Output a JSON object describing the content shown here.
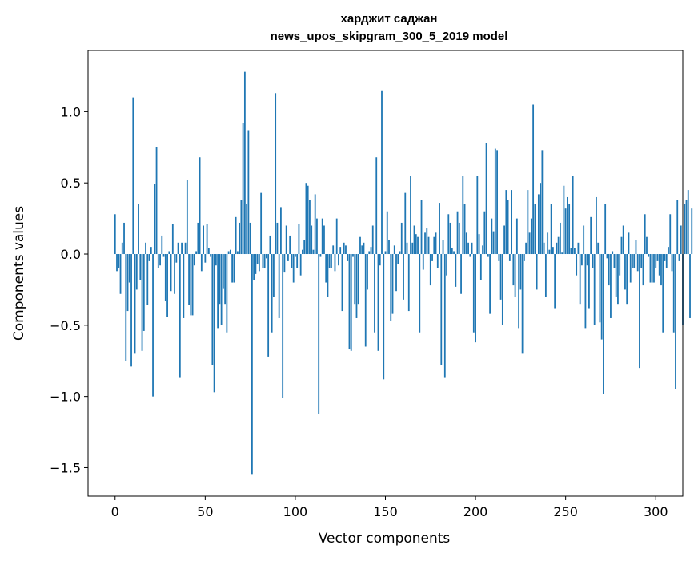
{
  "chart_data": {
    "type": "bar",
    "title": "харджит саджан",
    "subtitle": "news_upos_skipgram_300_5_2019 model",
    "xlabel": "Vector components",
    "ylabel": "Components values",
    "xlim": [
      -15,
      315
    ],
    "ylim": [
      -1.7,
      1.43
    ],
    "xticks": [
      0,
      50,
      100,
      150,
      200,
      250,
      300
    ],
    "yticks": [
      -1.5,
      -1.0,
      -0.5,
      0.0,
      0.5,
      1.0
    ],
    "ytick_labels": [
      "−1.5",
      "−1.0",
      "−0.5",
      "0.0",
      "0.5",
      "1.0"
    ],
    "xtick_labels": [
      "0",
      "50",
      "100",
      "150",
      "200",
      "250",
      "300"
    ],
    "bar_color": "#1f77b4",
    "grid": false,
    "legend": "none",
    "x_start": 0,
    "values": [
      0.28,
      -0.12,
      -0.1,
      -0.28,
      0.08,
      0.22,
      -0.75,
      -0.4,
      -0.2,
      -0.79,
      1.1,
      -0.7,
      -0.25,
      0.35,
      -0.18,
      -0.68,
      -0.54,
      0.08,
      -0.36,
      -0.05,
      0.05,
      -1.0,
      0.49,
      0.75,
      -0.1,
      -0.08,
      0.13,
      -0.02,
      -0.33,
      -0.44,
      0.02,
      -0.26,
      0.21,
      -0.28,
      -0.06,
      0.08,
      -0.87,
      0.08,
      -0.45,
      0.08,
      0.52,
      -0.36,
      -0.43,
      -0.43,
      -0.08,
      0.02,
      0.22,
      0.68,
      -0.12,
      0.2,
      -0.06,
      0.21,
      0.04,
      -0.02,
      -0.78,
      -0.97,
      -0.08,
      -0.52,
      -0.35,
      -0.5,
      -0.24,
      -0.35,
      -0.55,
      0.02,
      0.03,
      -0.2,
      -0.2,
      0.26,
      0.02,
      0.22,
      0.38,
      0.92,
      1.28,
      0.35,
      0.87,
      0.22,
      -1.55,
      -0.18,
      -0.14,
      -0.07,
      -0.12,
      0.43,
      -0.1,
      -0.1,
      -0.03,
      -0.72,
      0.13,
      -0.55,
      -0.3,
      1.13,
      0.22,
      -0.45,
      0.33,
      -1.01,
      -0.13,
      0.2,
      -0.05,
      0.13,
      -0.1,
      -0.2,
      -0.02,
      -0.1,
      0.21,
      -0.15,
      0.03,
      0.1,
      0.5,
      0.48,
      0.38,
      0.2,
      0.03,
      0.42,
      0.25,
      -1.12,
      -0.02,
      0.25,
      0.2,
      -0.2,
      -0.3,
      -0.1,
      -0.1,
      0.06,
      -0.12,
      0.25,
      -0.08,
      0.05,
      -0.4,
      0.08,
      0.06,
      -0.05,
      -0.67,
      -0.68,
      -0.02,
      -0.35,
      -0.45,
      -0.35,
      0.12,
      0.06,
      0.08,
      -0.65,
      -0.25,
      0.02,
      0.05,
      0.2,
      -0.55,
      0.68,
      -0.68,
      -0.08,
      1.15,
      -0.88,
      0.02,
      0.3,
      0.1,
      -0.47,
      -0.42,
      0.06,
      -0.26,
      -0.07,
      0.02,
      0.22,
      -0.32,
      0.43,
      0.08,
      -0.4,
      0.55,
      0.08,
      0.2,
      0.14,
      0.12,
      -0.55,
      0.38,
      -0.11,
      0.15,
      0.18,
      0.12,
      -0.22,
      -0.05,
      0.12,
      0.15,
      -0.1,
      0.36,
      -0.78,
      0.1,
      -0.87,
      -0.15,
      0.28,
      0.22,
      0.04,
      0.02,
      -0.23,
      0.3,
      0.22,
      -0.28,
      0.55,
      0.35,
      0.15,
      0.08,
      -0.02,
      0.08,
      -0.55,
      -0.62,
      0.55,
      0.14,
      -0.18,
      0.06,
      0.3,
      0.78,
      -0.02,
      -0.42,
      0.25,
      0.16,
      0.74,
      0.73,
      -0.05,
      -0.32,
      -0.5,
      0.2,
      0.45,
      0.38,
      -0.05,
      0.45,
      -0.22,
      -0.3,
      0.25,
      -0.52,
      -0.25,
      -0.7,
      -0.05,
      0.08,
      0.45,
      0.15,
      0.25,
      1.05,
      0.35,
      -0.25,
      0.42,
      0.5,
      0.73,
      0.08,
      -0.3,
      0.15,
      0.03,
      0.35,
      0.05,
      -0.38,
      0.08,
      0.12,
      0.22,
      0.01,
      0.48,
      0.32,
      0.4,
      0.35,
      0.04,
      0.55,
      0.04,
      -0.15,
      0.08,
      -0.35,
      -0.08,
      0.2,
      -0.52,
      -0.08,
      -0.38,
      0.26,
      -0.1,
      -0.5,
      0.4,
      0.08,
      -0.48,
      -0.6,
      -0.98,
      0.35,
      -0.03,
      -0.22,
      -0.45,
      0.02,
      -0.1,
      -0.3,
      -0.35,
      -0.15,
      0.12,
      0.2,
      -0.25,
      -0.35,
      0.15,
      -0.2,
      -0.1,
      -0.1,
      0.1,
      -0.12,
      -0.8,
      -0.1,
      -0.22,
      0.28,
      0.12,
      -0.02,
      -0.2,
      -0.2,
      -0.2,
      -0.1,
      -0.05,
      -0.15,
      -0.22,
      -0.55,
      -0.05,
      -0.1,
      0.05,
      0.28,
      -0.12,
      -0.55,
      -0.95,
      0.38,
      -0.05,
      0.2,
      -0.5,
      0.35,
      0.38,
      0.45,
      -0.45,
      0.32
    ]
  }
}
